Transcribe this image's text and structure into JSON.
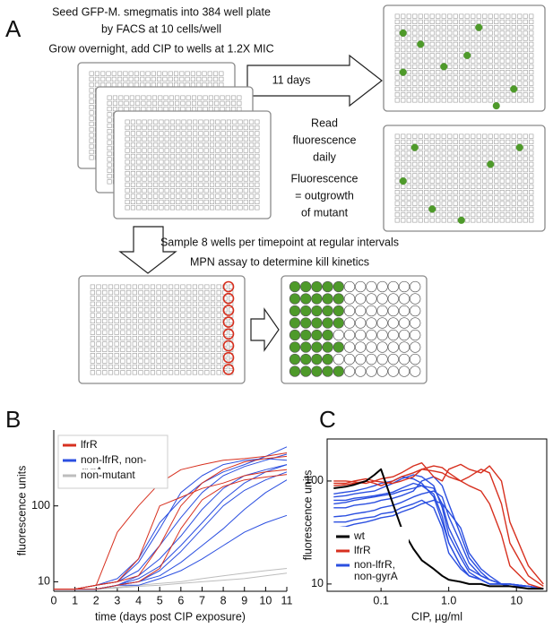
{
  "panel_labels": [
    "A",
    "B",
    "C"
  ],
  "panel_a": {
    "header_lines": [
      "Seed GFP-M. smegmatis into 384 well plate",
      "by FACS at 10 cells/well",
      "Grow overnight, add CIP to wells at 1.2X MIC"
    ],
    "arrow_label": "11 days",
    "read_lines": [
      "Read",
      "fluorescence",
      "daily"
    ],
    "outgrowth_lines": [
      "Fluorescence",
      "= outgrowth",
      "of mutant"
    ],
    "sample_lines": [
      "Sample 8 wells per timepoint at regular intervals",
      "MPN assay to determine kill kinetics"
    ]
  },
  "chart_data": [
    {
      "type": "line",
      "x_label": "time (days post CIP exposure)",
      "y_label": "fluorescence units",
      "x": [
        0,
        1,
        2,
        3,
        4,
        5,
        6,
        7,
        8,
        9,
        10,
        11
      ],
      "xlim": [
        0,
        11
      ],
      "xticks": [
        0,
        1,
        2,
        3,
        4,
        5,
        6,
        7,
        8,
        9,
        10,
        11
      ],
      "ylim": [
        7.5,
        1000
      ],
      "yticks": [
        10,
        100
      ],
      "y_scale": "log",
      "legend": "upper left",
      "series": [
        {
          "name": "lfrR",
          "color": "#d7301f",
          "lines": [
            [
              8,
              8,
              9,
              45,
              100,
              200,
              300,
              350,
              400,
              420,
              450,
              500
            ],
            [
              8,
              8,
              9,
              10,
              20,
              100,
              130,
              170,
              200,
              250,
              280,
              300
            ],
            [
              8,
              8,
              9,
              10,
              12,
              30,
              100,
              200,
              300,
              380,
              420,
              450
            ],
            [
              8,
              8,
              8,
              9,
              10,
              15,
              50,
              120,
              180,
              220,
              240,
              260
            ]
          ]
        },
        {
          "name": "non-lfrR, non-gyrA",
          "color": "#2b4fe0",
          "lines": [
            [
              8,
              8,
              9,
              11,
              20,
              60,
              120,
              200,
              280,
              350,
              450,
              600
            ],
            [
              8,
              8,
              9,
              10,
              14,
              30,
              70,
              150,
              250,
              330,
              400,
              480
            ],
            [
              8,
              8,
              8,
              9,
              12,
              20,
              40,
              90,
              170,
              250,
              300,
              350
            ],
            [
              8,
              8,
              8,
              9,
              10,
              14,
              25,
              50,
              100,
              160,
              220,
              280
            ],
            [
              8,
              8,
              8,
              9,
              10,
              12,
              18,
              30,
              50,
              90,
              150,
              220
            ],
            [
              8,
              8,
              8,
              9,
              9,
              11,
              14,
              20,
              30,
              45,
              60,
              75
            ],
            [
              8,
              8,
              9,
              10,
              18,
              50,
              150,
              250,
              350,
              400,
              420,
              400
            ],
            [
              8,
              8,
              8,
              9,
              11,
              16,
              30,
              60,
              120,
              200,
              280,
              350
            ]
          ]
        },
        {
          "name": "non-mutant",
          "color": "#bdbdbd",
          "lines": [
            [
              8,
              8,
              8,
              8.5,
              9,
              9.5,
              10,
              11,
              12,
              13,
              14,
              15
            ],
            [
              8,
              8,
              8,
              8.3,
              8.7,
              9,
              9.5,
              10,
              10.5,
              11,
              12,
              13
            ]
          ]
        }
      ]
    },
    {
      "type": "line",
      "x_label": "CIP, µg/ml",
      "y_label": "fluorescence units",
      "x": [
        0.02,
        0.03,
        0.04,
        0.06,
        0.08,
        0.1,
        0.15,
        0.2,
        0.3,
        0.4,
        0.6,
        0.8,
        1,
        1.5,
        2,
        3,
        4,
        6,
        8,
        15,
        25
      ],
      "xlim": [
        0.016,
        28
      ],
      "xticks": [
        0.1,
        {
          "value": 1,
          "label": "1.0"
        },
        10
      ],
      "x_scale": "log",
      "ylim": [
        8.5,
        256
      ],
      "yticks": [
        10,
        100
      ],
      "y_scale": "log",
      "legend": "lower left",
      "series": [
        {
          "name": "wt",
          "color": "#000000",
          "lines": [
            [
              85,
              88,
              92,
              100,
              115,
              130,
              60,
              35,
              22,
              17,
              14,
              12,
              11,
              10.5,
              10,
              10,
              9.5,
              9.5,
              9.5,
              9,
              9
            ]
          ]
        },
        {
          "name": "lfrR",
          "color": "#d7301f",
          "lines": [
            [
              100,
              100,
              98,
              95,
              100,
              105,
              110,
              120,
              140,
              150,
              110,
              100,
              130,
              145,
              130,
              120,
              140,
              100,
              40,
              15,
              10
            ],
            [
              90,
              92,
              95,
              100,
              95,
              90,
              100,
              110,
              120,
              130,
              125,
              120,
              110,
              100,
              110,
              130,
              120,
              60,
              25,
              12,
              9.5
            ],
            [
              95,
              95,
              100,
              105,
              100,
              98,
              95,
              100,
              110,
              130,
              140,
              135,
              120,
              100,
              90,
              80,
              60,
              30,
              15,
              10,
              9
            ]
          ]
        },
        {
          "name": "non-lfrR, non-gyrA",
          "color": "#2b4fe0",
          "lines": [
            [
              75,
              78,
              80,
              85,
              90,
              95,
              100,
              110,
              105,
              95,
              70,
              40,
              25,
              15,
              12,
              11,
              10,
              10,
              9.5,
              9.5,
              9
            ],
            [
              60,
              62,
              65,
              68,
              70,
              72,
              75,
              80,
              85,
              90,
              85,
              60,
              35,
              20,
              14,
              12,
              11,
              10,
              10,
              9.5,
              9
            ],
            [
              55,
              55,
              58,
              60,
              62,
              65,
              68,
              72,
              80,
              100,
              110,
              90,
              60,
              30,
              18,
              13,
              11,
              10,
              10,
              9.5,
              9
            ],
            [
              45,
              46,
              48,
              50,
              52,
              55,
              58,
              62,
              70,
              75,
              80,
              70,
              45,
              25,
              16,
              12,
              11,
              10,
              10,
              9.5,
              9
            ],
            [
              40,
              40,
              42,
              44,
              45,
              48,
              50,
              55,
              60,
              65,
              55,
              35,
              20,
              14,
              12,
              11,
              10,
              10,
              9.5,
              9.5,
              9
            ],
            [
              70,
              72,
              75,
              78,
              80,
              85,
              95,
              105,
              115,
              110,
              90,
              55,
              30,
              18,
              13,
              11,
              10,
              10,
              9.5,
              9,
              9
            ],
            [
              35,
              36,
              38,
              40,
              42,
              44,
              46,
              50,
              55,
              60,
              65,
              60,
              50,
              35,
              20,
              14,
              12,
              10,
              10,
              9.5,
              9
            ],
            [
              65,
              65,
              68,
              70,
              72,
              74,
              78,
              85,
              95,
              90,
              75,
              45,
              25,
              15,
              12,
              11,
              10,
              10,
              9.5,
              9,
              9
            ]
          ]
        }
      ]
    }
  ]
}
